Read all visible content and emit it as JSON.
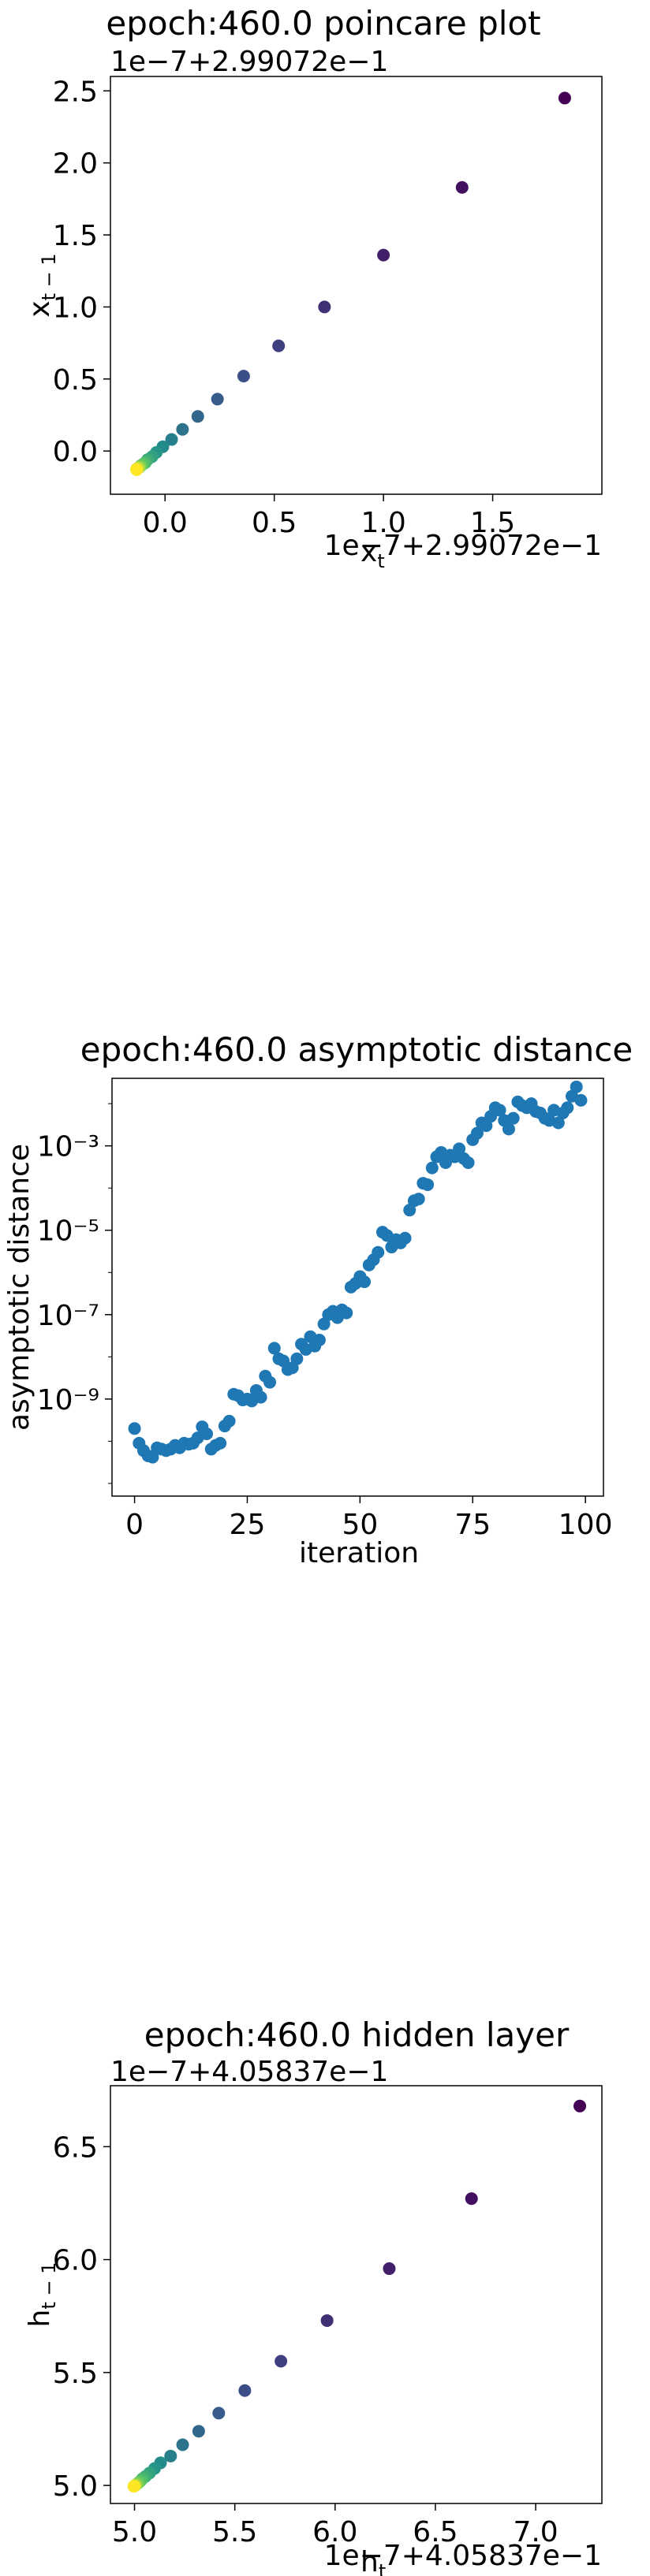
{
  "chart_data": [
    {
      "type": "scatter",
      "title": "epoch:460.0 poincare plot",
      "xlabel": "x_t",
      "ylabel": "x_{t-1}",
      "x_offset_text": "1e−7+2.99072e−1",
      "y_offset_text": "1e−7+2.99072e−1",
      "xlim": [
        -0.25,
        2.0
      ],
      "ylim": [
        -0.3,
        2.6
      ],
      "x_ticks": [
        0.0,
        0.5,
        1.0,
        1.5
      ],
      "x_tick_labels": [
        "0.0",
        "0.5",
        "1.0",
        "1.5"
      ],
      "y_ticks": [
        0.0,
        0.5,
        1.0,
        1.5,
        2.0,
        2.5
      ],
      "y_tick_labels": [
        "0.0",
        "0.5",
        "1.0",
        "1.5",
        "2.0",
        "2.5"
      ],
      "log_y": false,
      "grid": false,
      "colormap": "viridis",
      "points": [
        {
          "x": 1.83,
          "y": 2.45
        },
        {
          "x": 1.36,
          "y": 1.83
        },
        {
          "x": 1.0,
          "y": 1.36
        },
        {
          "x": 0.73,
          "y": 1.0
        },
        {
          "x": 0.52,
          "y": 0.73
        },
        {
          "x": 0.36,
          "y": 0.52
        },
        {
          "x": 0.24,
          "y": 0.36
        },
        {
          "x": 0.15,
          "y": 0.24
        },
        {
          "x": 0.08,
          "y": 0.15
        },
        {
          "x": 0.03,
          "y": 0.08
        },
        {
          "x": -0.01,
          "y": 0.03
        },
        {
          "x": -0.04,
          "y": -0.01
        },
        {
          "x": -0.06,
          "y": -0.04
        },
        {
          "x": -0.08,
          "y": -0.06
        },
        {
          "x": -0.09,
          "y": -0.08
        },
        {
          "x": -0.1,
          "y": -0.09
        },
        {
          "x": -0.11,
          "y": -0.1
        },
        {
          "x": -0.115,
          "y": -0.11
        },
        {
          "x": -0.12,
          "y": -0.115
        },
        {
          "x": -0.125,
          "y": -0.12
        },
        {
          "x": -0.13,
          "y": -0.125
        },
        {
          "x": -0.13,
          "y": -0.13
        }
      ]
    },
    {
      "type": "scatter",
      "title": "epoch:460.0 asymptotic distance",
      "xlabel": "iteration",
      "ylabel": "asymptotic distance",
      "xlim": [
        -5,
        104
      ],
      "ylim_log10": [
        -11.3,
        -1.4
      ],
      "x_ticks": [
        0,
        25,
        50,
        75,
        100
      ],
      "x_tick_labels": [
        "0",
        "25",
        "50",
        "75",
        "100"
      ],
      "y_ticks_log10": [
        -9,
        -7,
        -5,
        -3
      ],
      "y_tick_labels": [
        "10⁻⁹",
        "10⁻⁷",
        "10⁻⁵",
        "10⁻³"
      ],
      "log_y": true,
      "grid": false,
      "color": "#1f77b4",
      "x": [
        0,
        1,
        2,
        3,
        4,
        5,
        6,
        7,
        8,
        9,
        10,
        11,
        12,
        13,
        14,
        15,
        16,
        17,
        18,
        19,
        20,
        21,
        22,
        23,
        24,
        25,
        26,
        27,
        28,
        29,
        30,
        31,
        32,
        33,
        34,
        35,
        36,
        37,
        38,
        39,
        40,
        41,
        42,
        43,
        44,
        45,
        46,
        47,
        48,
        49,
        50,
        51,
        52,
        53,
        54,
        55,
        56,
        57,
        58,
        59,
        60,
        61,
        62,
        63,
        64,
        65,
        66,
        67,
        68,
        69,
        70,
        71,
        72,
        73,
        74,
        75,
        76,
        77,
        78,
        79,
        80,
        81,
        82,
        83,
        84,
        85,
        86,
        87,
        88,
        89,
        90,
        91,
        92,
        93,
        94,
        95,
        96,
        97,
        98,
        99
      ],
      "y": [
        2e-10,
        9e-11,
        6e-11,
        4.5e-11,
        4.2e-11,
        7e-11,
        6.5e-11,
        6e-11,
        6.5e-11,
        8e-11,
        7e-11,
        9e-11,
        8.5e-11,
        9e-11,
        1.2e-10,
        2.2e-10,
        1.5e-10,
        6.5e-11,
        8e-11,
        9e-11,
        2.3e-10,
        3e-10,
        1.3e-09,
        1.2e-09,
        9.5e-10,
        1e-09,
        9e-10,
        1.6e-09,
        1.1e-09,
        3.5e-09,
        2.5e-09,
        1.6e-08,
        9e-09,
        8e-09,
        5e-09,
        5.5e-09,
        9e-09,
        2e-08,
        1.5e-08,
        3e-08,
        1.8e-08,
        2.5e-08,
        6e-08,
        1e-07,
        1.2e-07,
        8.5e-08,
        1.3e-07,
        1.1e-07,
        4.5e-07,
        5.5e-07,
        8e-07,
        6e-07,
        1.5e-06,
        2e-06,
        3e-06,
        9e-06,
        7.5e-06,
        4e-06,
        6e-06,
        5e-06,
        6.5e-06,
        3e-05,
        5e-05,
        5.5e-05,
        0.00013,
        0.00012,
        0.0003,
        0.00055,
        0.0007,
        0.0004,
        0.0006,
        0.00055,
        0.00085,
        0.0005,
        0.0004,
        0.0014,
        0.002,
        0.0035,
        0.003,
        0.005,
        0.008,
        0.007,
        0.004,
        0.0025,
        0.0045,
        0.011,
        0.009,
        0.008,
        0.01,
        0.0065,
        0.006,
        0.0045,
        0.004,
        0.007,
        0.0035,
        0.006,
        0.008,
        0.015,
        0.025,
        0.012
      ]
    },
    {
      "type": "scatter",
      "title": "epoch:460.0 hidden layer",
      "xlabel": "h_t",
      "ylabel": "h_{t-1}",
      "x_offset_text": "1e−7+4.05837e−1",
      "y_offset_text": "1e−7+4.05837e−1",
      "xlim": [
        4.88,
        7.33
      ],
      "ylim": [
        4.92,
        6.77
      ],
      "x_ticks": [
        5.0,
        5.5,
        6.0,
        6.5,
        7.0
      ],
      "x_tick_labels": [
        "5.0",
        "5.5",
        "6.0",
        "6.5",
        "7.0"
      ],
      "y_ticks": [
        5.0,
        5.5,
        6.0,
        6.5
      ],
      "y_tick_labels": [
        "5.0",
        "5.5",
        "6.0",
        "6.5"
      ],
      "log_y": false,
      "grid": false,
      "colormap": "viridis",
      "points": [
        {
          "x": 7.22,
          "y": 6.68
        },
        {
          "x": 6.68,
          "y": 6.27
        },
        {
          "x": 6.27,
          "y": 5.96
        },
        {
          "x": 5.96,
          "y": 5.73
        },
        {
          "x": 5.73,
          "y": 5.55
        },
        {
          "x": 5.55,
          "y": 5.42
        },
        {
          "x": 5.42,
          "y": 5.32
        },
        {
          "x": 5.32,
          "y": 5.24
        },
        {
          "x": 5.24,
          "y": 5.18
        },
        {
          "x": 5.18,
          "y": 5.13
        },
        {
          "x": 5.13,
          "y": 5.1
        },
        {
          "x": 5.1,
          "y": 5.075
        },
        {
          "x": 5.075,
          "y": 5.055
        },
        {
          "x": 5.055,
          "y": 5.04
        },
        {
          "x": 5.04,
          "y": 5.03
        },
        {
          "x": 5.03,
          "y": 5.02
        },
        {
          "x": 5.02,
          "y": 5.012
        },
        {
          "x": 5.012,
          "y": 5.006
        },
        {
          "x": 5.006,
          "y": 5.002
        },
        {
          "x": 5.002,
          "y": 4.999
        },
        {
          "x": 4.999,
          "y": 4.997
        },
        {
          "x": 4.997,
          "y": 4.996
        }
      ]
    }
  ]
}
